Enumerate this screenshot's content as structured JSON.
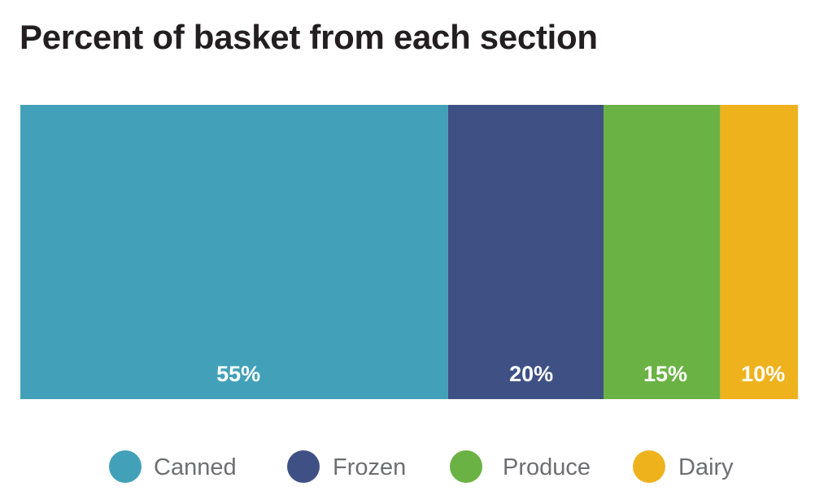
{
  "chart_data": {
    "type": "bar",
    "orientation": "horizontal",
    "stacked": true,
    "title": "Percent of basket from each section",
    "categories": [
      "Canned",
      "Frozen",
      "Produce",
      "Dairy"
    ],
    "values": [
      55,
      20,
      15,
      10
    ],
    "data_labels": [
      "55%",
      "20%",
      "15%",
      "10%"
    ],
    "colors": [
      "#42a1b8",
      "#3f5184",
      "#6ab244",
      "#eeb21d"
    ],
    "xlim": [
      0,
      100
    ],
    "grid": false,
    "legend": "bottom"
  }
}
